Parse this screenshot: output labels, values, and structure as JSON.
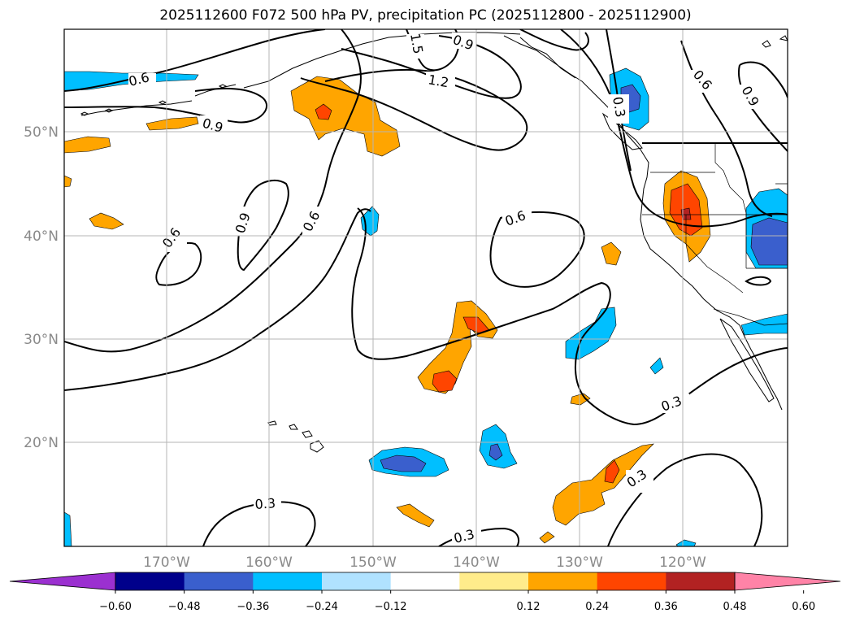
{
  "title": "2025112600 F072 500 hPa PV, precipitation PC (2025112800 - 2025112900)",
  "map": {
    "lat_labels": [
      "50°N",
      "40°N",
      "30°N",
      "20°N"
    ],
    "lon_labels": [
      "170°W",
      "160°W",
      "150°W",
      "140°W",
      "130°W",
      "120°W"
    ],
    "contour_labels": [
      "1.5",
      "0.9",
      "1.2",
      "0.6",
      "0.9",
      "0.6",
      "0.9",
      "0.3",
      "0.9",
      "0.6",
      "0.6",
      "0.6",
      "0.3",
      "0.3",
      "0.3",
      "0.3"
    ]
  },
  "colorbar": {
    "tick_labels": [
      "−0.60",
      "−0.48",
      "−0.36",
      "−0.24",
      "−0.12",
      "0.12",
      "0.24",
      "0.36",
      "0.48",
      "0.60"
    ],
    "colors": [
      "#9b30d0",
      "#00008b",
      "#3a5fcd",
      "#00bfff",
      "#b0e2ff",
      "#ffffff",
      "#ffec8b",
      "#ffa500",
      "#ff4500",
      "#b22222",
      "#ff83a7"
    ]
  }
}
